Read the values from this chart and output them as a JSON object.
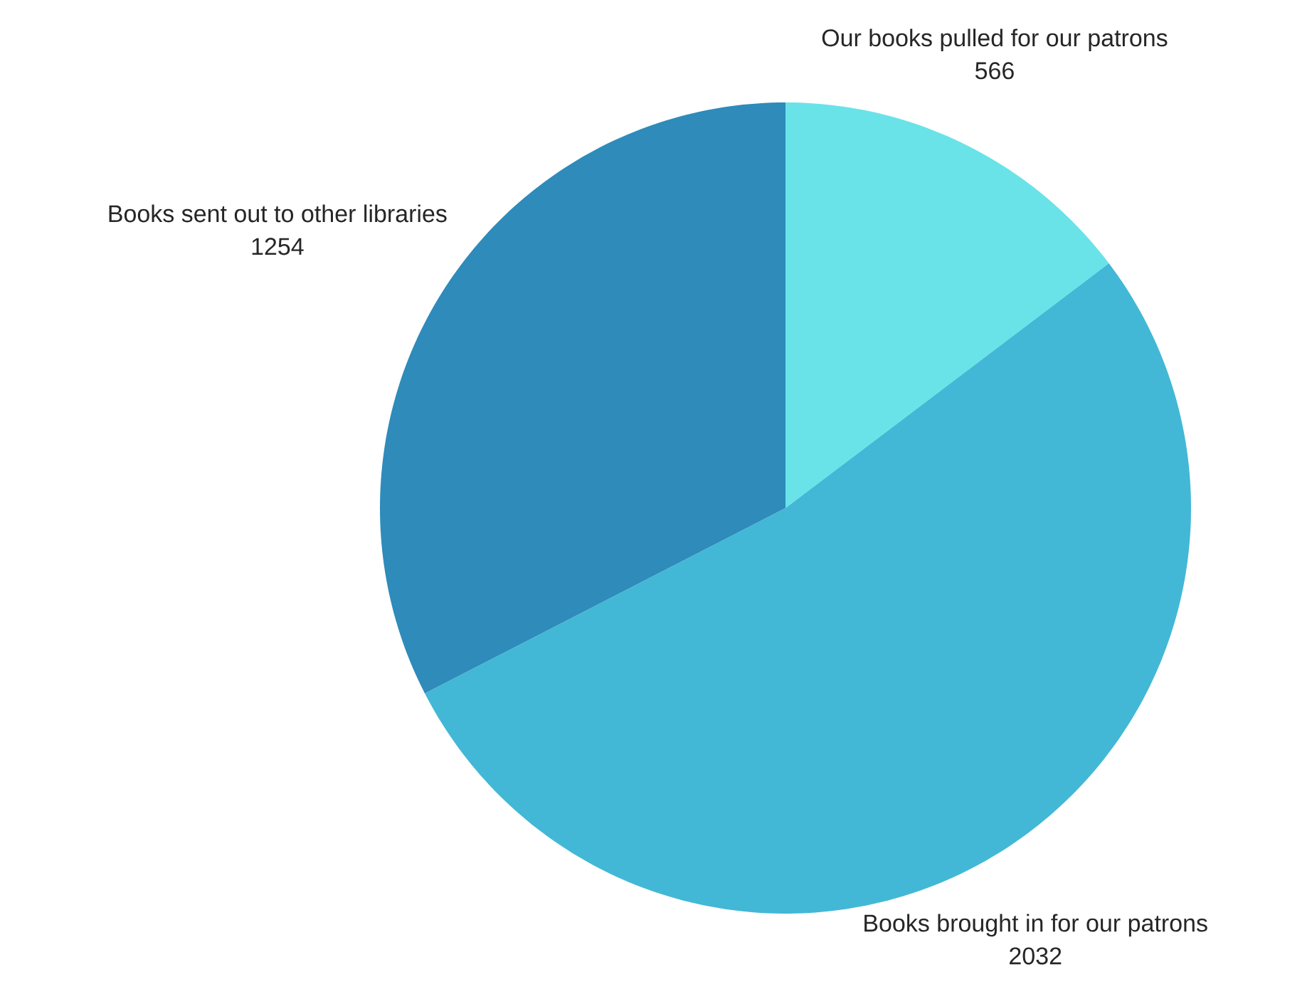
{
  "chart_data": {
    "type": "pie",
    "categories": [
      "Our books pulled for our patrons",
      "Books brought in for our patrons",
      "Books sent out to other libraries"
    ],
    "values": [
      566,
      2032,
      1254
    ],
    "colors": [
      "#6ae3e8",
      "#42b8d6",
      "#2e8bba"
    ],
    "data_labels": true
  }
}
